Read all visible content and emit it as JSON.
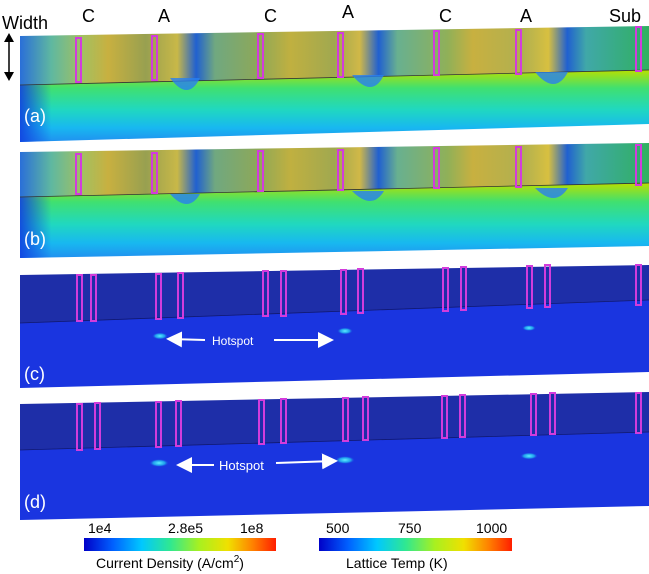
{
  "header": {
    "width_label": "Width",
    "terminals": [
      "C",
      "A",
      "C",
      "A",
      "C",
      "A",
      "Sub"
    ]
  },
  "panels": [
    {
      "label": "(a)",
      "map": "current"
    },
    {
      "label": "(b)",
      "map": "current"
    },
    {
      "label": "(c)",
      "map": "temperature",
      "hotspot_label": "Hotspot"
    },
    {
      "label": "(d)",
      "map": "temperature",
      "hotspot_label": "Hotspot"
    }
  ],
  "colorbars": {
    "current": {
      "ticks": [
        "1e4",
        "2.8e5",
        "1e8"
      ],
      "title_main": "Current Density (A/cm",
      "title_sup": "2",
      "title_end": ")"
    },
    "temperature": {
      "ticks": [
        "500",
        "750",
        "1000"
      ],
      "title": "Lattice Temp (K)"
    }
  },
  "colors": {
    "contact_outline": "#d23cdc",
    "temp_base_top": "#1e2ea8",
    "temp_base_side": "#1a35e0",
    "hotspot": "#2fd4f0",
    "arrow": "#ffffff"
  }
}
